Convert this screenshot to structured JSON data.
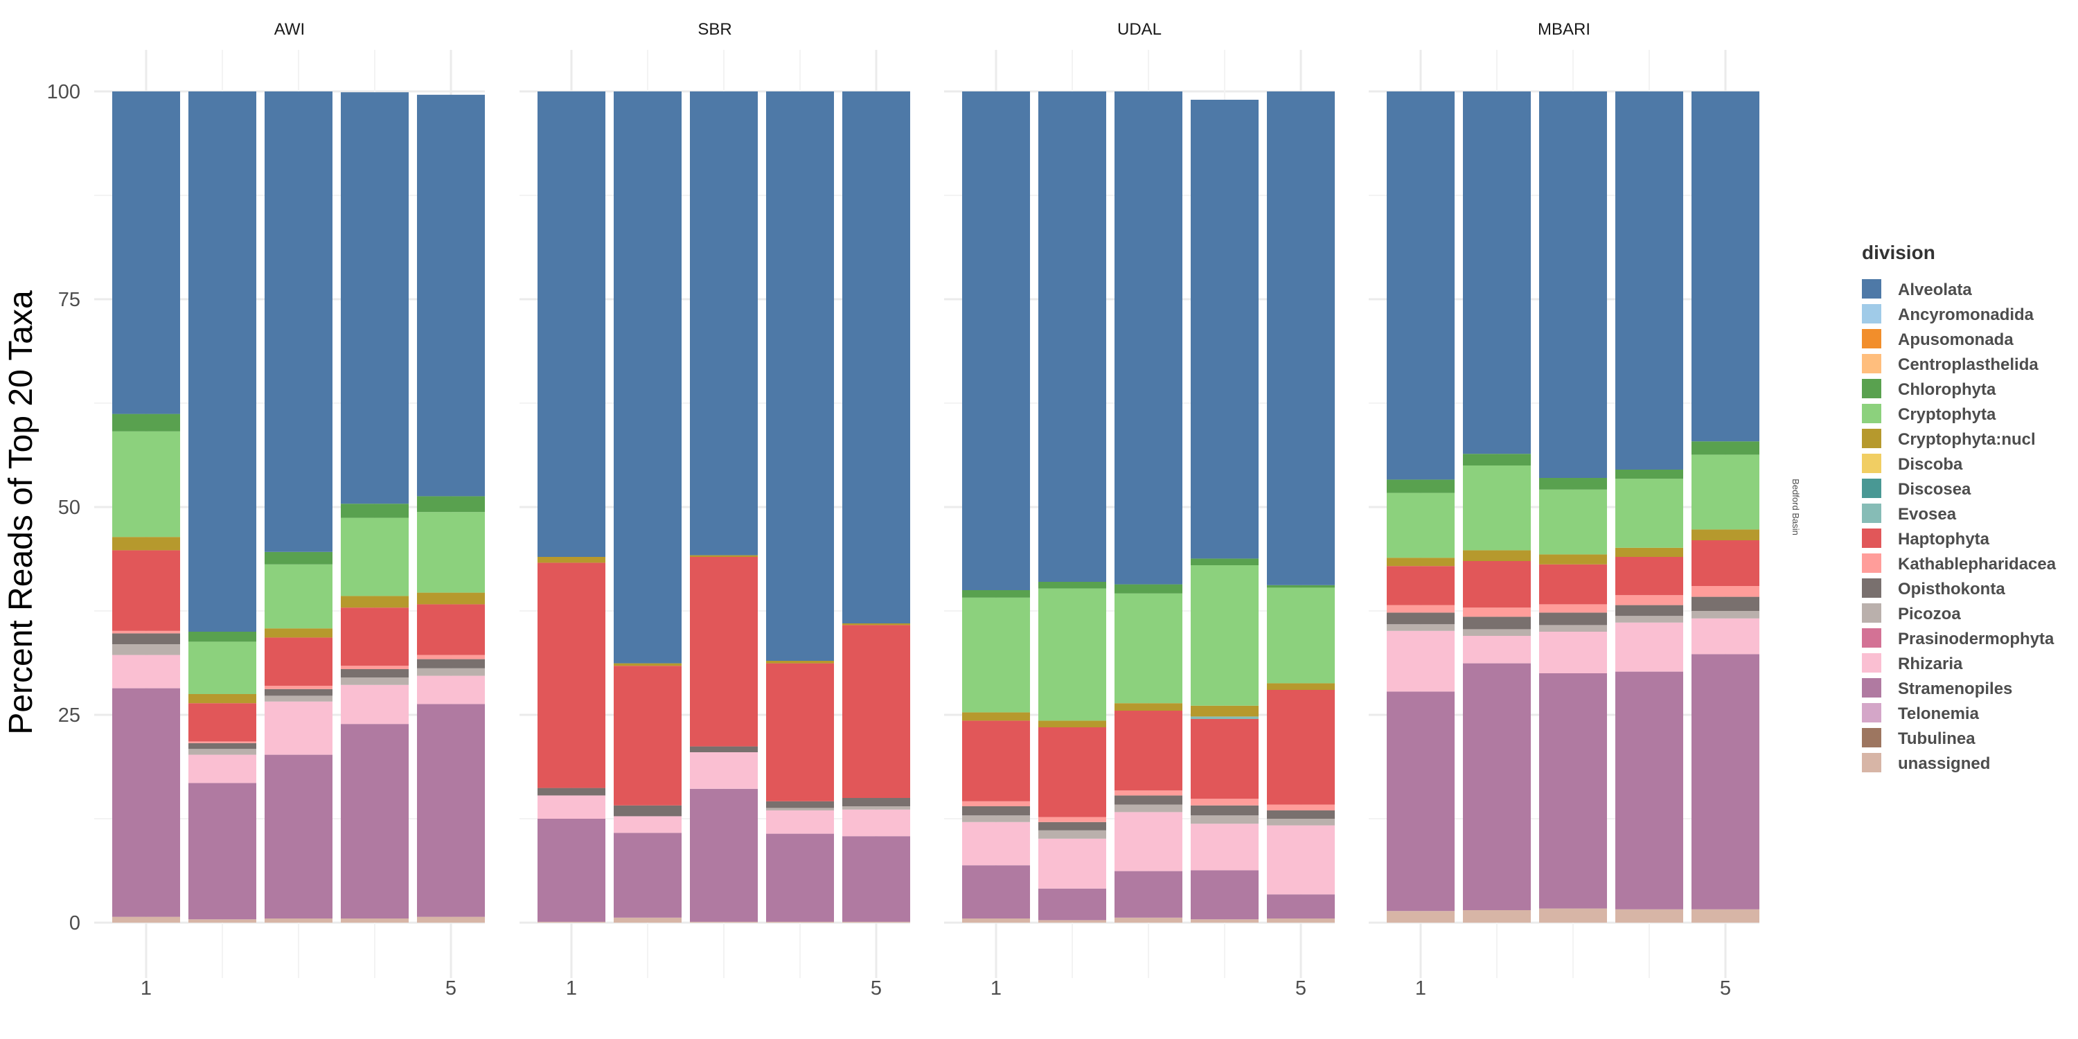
{
  "chart_data": {
    "type": "bar",
    "stacked": true,
    "ylabel": "Percent Reads of Top 20 Taxa",
    "xlabel": "",
    "ylim": [
      0,
      100
    ],
    "yticks": [
      0,
      25,
      50,
      75,
      100
    ],
    "xticks": [
      "1",
      "5"
    ],
    "grid": true,
    "row_strip": "Bedford Basin",
    "legend": {
      "title": "division",
      "position": "right",
      "entries": [
        {
          "name": "Alveolata",
          "color": "#4E79A7"
        },
        {
          "name": "Ancyromonadida",
          "color": "#A0CBE8"
        },
        {
          "name": "Apusomonada",
          "color": "#F28E2B"
        },
        {
          "name": "Centroplasthelida",
          "color": "#FFBE7D"
        },
        {
          "name": "Chlorophyta",
          "color": "#59A14F"
        },
        {
          "name": "Cryptophyta",
          "color": "#8CD17D"
        },
        {
          "name": "Cryptophyta:nucl",
          "color": "#B6992D"
        },
        {
          "name": "Discoba",
          "color": "#F1CE63"
        },
        {
          "name": "Discosea",
          "color": "#499894"
        },
        {
          "name": "Evosea",
          "color": "#86BCB6"
        },
        {
          "name": "Haptophyta",
          "color": "#E15759"
        },
        {
          "name": "Kathablepharidacea",
          "color": "#FF9D9A"
        },
        {
          "name": "Opisthokonta",
          "color": "#79706E"
        },
        {
          "name": "Picozoa",
          "color": "#BAB0AC"
        },
        {
          "name": "Prasinodermophyta",
          "color": "#D37295"
        },
        {
          "name": "Rhizaria",
          "color": "#FABFD2"
        },
        {
          "name": "Stramenopiles",
          "color": "#B07AA1"
        },
        {
          "name": "Telonemia",
          "color": "#D4A6C8"
        },
        {
          "name": "Tubulinea",
          "color": "#9D7660"
        },
        {
          "name": "unassigned",
          "color": "#D7B5A6"
        }
      ]
    },
    "facets": [
      {
        "name": "AWI",
        "bars": [
          {
            "unassigned": 0.7,
            "Stramenopiles": 27.5,
            "Rhizaria": 4.0,
            "Picozoa": 1.3,
            "Opisthokonta": 1.3,
            "Kathablepharidacea": 0.3,
            "Haptophyta": 9.7,
            "Cryptophyta:nucl": 1.6,
            "Cryptophyta": 12.7,
            "Chlorophyta": 2.1,
            "Alveolata": 38.8
          },
          {
            "unassigned": 0.4,
            "Stramenopiles": 16.4,
            "Rhizaria": 3.4,
            "Picozoa": 0.7,
            "Opisthokonta": 0.7,
            "Kathablepharidacea": 0.2,
            "Haptophyta": 4.6,
            "Cryptophyta:nucl": 1.1,
            "Cryptophyta": 6.3,
            "Chlorophyta": 1.2,
            "Alveolata": 65.0
          },
          {
            "unassigned": 0.5,
            "Stramenopiles": 19.7,
            "Rhizaria": 6.4,
            "Picozoa": 0.7,
            "Opisthokonta": 0.8,
            "Kathablepharidacea": 0.4,
            "Haptophyta": 5.8,
            "Cryptophyta:nucl": 1.1,
            "Cryptophyta": 7.7,
            "Chlorophyta": 1.5,
            "Alveolata": 55.4
          },
          {
            "unassigned": 0.5,
            "Stramenopiles": 23.4,
            "Rhizaria": 4.7,
            "Picozoa": 0.9,
            "Opisthokonta": 1.0,
            "Kathablepharidacea": 0.4,
            "Haptophyta": 7.0,
            "Cryptophyta:nucl": 1.4,
            "Cryptophyta": 9.4,
            "Chlorophyta": 1.7,
            "Alveolata": 49.5
          },
          {
            "unassigned": 0.7,
            "Stramenopiles": 25.6,
            "Rhizaria": 3.4,
            "Picozoa": 0.9,
            "Opisthokonta": 1.1,
            "Kathablepharidacea": 0.5,
            "Haptophyta": 6.1,
            "Cryptophyta:nucl": 1.4,
            "Cryptophyta": 9.7,
            "Chlorophyta": 1.9,
            "Alveolata": 48.3
          }
        ]
      },
      {
        "name": "SBR",
        "bars": [
          {
            "unassigned": 0.1,
            "Stramenopiles": 12.4,
            "Rhizaria": 2.8,
            "Opisthokonta": 0.9,
            "Haptophyta": 27.1,
            "Cryptophyta:nucl": 0.7,
            "Alveolata": 56.0
          },
          {
            "unassigned": 0.6,
            "Stramenopiles": 10.2,
            "Rhizaria": 2.0,
            "Opisthokonta": 1.3,
            "Haptophyta": 16.8,
            "Cryptophyta:nucl": 0.3,
            "Alveolata": 68.8
          },
          {
            "unassigned": 0.1,
            "Stramenopiles": 16.0,
            "Rhizaria": 4.4,
            "Opisthokonta": 0.7,
            "Haptophyta": 22.8,
            "Cryptophyta:nucl": 0.2,
            "Alveolata": 55.8
          },
          {
            "unassigned": 0.1,
            "Stramenopiles": 10.6,
            "Rhizaria": 2.8,
            "Picozoa": 0.3,
            "Opisthokonta": 0.8,
            "Haptophyta": 16.6,
            "Cryptophyta:nucl": 0.3,
            "Alveolata": 68.5
          },
          {
            "unassigned": 0.1,
            "Stramenopiles": 10.3,
            "Rhizaria": 3.2,
            "Picozoa": 0.4,
            "Opisthokonta": 1.0,
            "Haptophyta": 20.8,
            "Cryptophyta:nucl": 0.2,
            "Alveolata": 64.0
          }
        ]
      },
      {
        "name": "UDAL",
        "bars": [
          {
            "unassigned": 0.5,
            "Stramenopiles": 6.4,
            "Rhizaria": 5.2,
            "Picozoa": 0.8,
            "Opisthokonta": 1.1,
            "Kathablepharidacea": 0.6,
            "Haptophyta": 9.7,
            "Cryptophyta:nucl": 1.0,
            "Cryptophyta": 13.8,
            "Chlorophyta": 0.9,
            "Alveolata": 60.0
          },
          {
            "unassigned": 0.3,
            "Stramenopiles": 3.8,
            "Rhizaria": 6.0,
            "Picozoa": 1.0,
            "Opisthokonta": 1.0,
            "Kathablepharidacea": 0.6,
            "Haptophyta": 10.8,
            "Cryptophyta:nucl": 0.8,
            "Cryptophyta": 15.9,
            "Chlorophyta": 0.8,
            "Alveolata": 59.0
          },
          {
            "unassigned": 0.6,
            "Stramenopiles": 5.6,
            "Rhizaria": 7.1,
            "Picozoa": 0.9,
            "Opisthokonta": 1.1,
            "Kathablepharidacea": 0.6,
            "Haptophyta": 9.6,
            "Cryptophyta:nucl": 0.9,
            "Cryptophyta": 13.2,
            "Chlorophyta": 1.1,
            "Alveolata": 59.3
          },
          {
            "unassigned": 0.4,
            "Stramenopiles": 5.9,
            "Rhizaria": 5.6,
            "Picozoa": 1.0,
            "Opisthokonta": 1.2,
            "Kathablepharidacea": 0.8,
            "Haptophyta": 9.6,
            "Evosea": 0.3,
            "Cryptophyta:nucl": 1.3,
            "Cryptophyta": 16.9,
            "Chlorophyta": 0.8,
            "Alveolata": 55.2
          },
          {
            "unassigned": 0.5,
            "Stramenopiles": 2.9,
            "Rhizaria": 8.3,
            "Picozoa": 0.8,
            "Opisthokonta": 1.0,
            "Kathablepharidacea": 0.7,
            "Haptophyta": 13.8,
            "Cryptophyta:nucl": 0.8,
            "Cryptophyta": 11.5,
            "Chlorophyta": 0.3,
            "Alveolata": 59.4
          }
        ]
      },
      {
        "name": "MBARI",
        "bars": [
          {
            "unassigned": 1.4,
            "Stramenopiles": 26.4,
            "Rhizaria": 7.3,
            "Picozoa": 0.8,
            "Opisthokonta": 1.4,
            "Kathablepharidacea": 0.9,
            "Haptophyta": 4.7,
            "Cryptophyta:nucl": 1.0,
            "Cryptophyta": 7.8,
            "Chlorophyta": 1.6,
            "Alveolata": 46.7
          },
          {
            "unassigned": 1.5,
            "Stramenopiles": 29.7,
            "Rhizaria": 3.3,
            "Picozoa": 0.8,
            "Opisthokonta": 1.5,
            "Kathablepharidacea": 1.1,
            "Haptophyta": 5.6,
            "Cryptophyta:nucl": 1.3,
            "Cryptophyta": 10.2,
            "Chlorophyta": 1.4,
            "Alveolata": 43.6
          },
          {
            "unassigned": 1.7,
            "Stramenopiles": 28.3,
            "Rhizaria": 5.0,
            "Picozoa": 0.8,
            "Opisthokonta": 1.5,
            "Kathablepharidacea": 1.0,
            "Haptophyta": 4.8,
            "Cryptophyta:nucl": 1.2,
            "Cryptophyta": 7.8,
            "Chlorophyta": 1.4,
            "Alveolata": 46.5
          },
          {
            "unassigned": 1.6,
            "Stramenopiles": 28.6,
            "Rhizaria": 5.9,
            "Picozoa": 0.8,
            "Opisthokonta": 1.3,
            "Kathablepharidacea": 1.2,
            "Haptophyta": 4.6,
            "Cryptophyta:nucl": 1.1,
            "Cryptophyta": 8.3,
            "Chlorophyta": 1.1,
            "Alveolata": 45.5
          },
          {
            "unassigned": 1.6,
            "Stramenopiles": 30.7,
            "Rhizaria": 4.3,
            "Picozoa": 0.9,
            "Opisthokonta": 1.7,
            "Kathablepharidacea": 1.3,
            "Haptophyta": 5.5,
            "Cryptophyta:nucl": 1.3,
            "Cryptophyta": 9.0,
            "Chlorophyta": 1.6,
            "Alveolata": 42.1
          }
        ]
      }
    ]
  }
}
